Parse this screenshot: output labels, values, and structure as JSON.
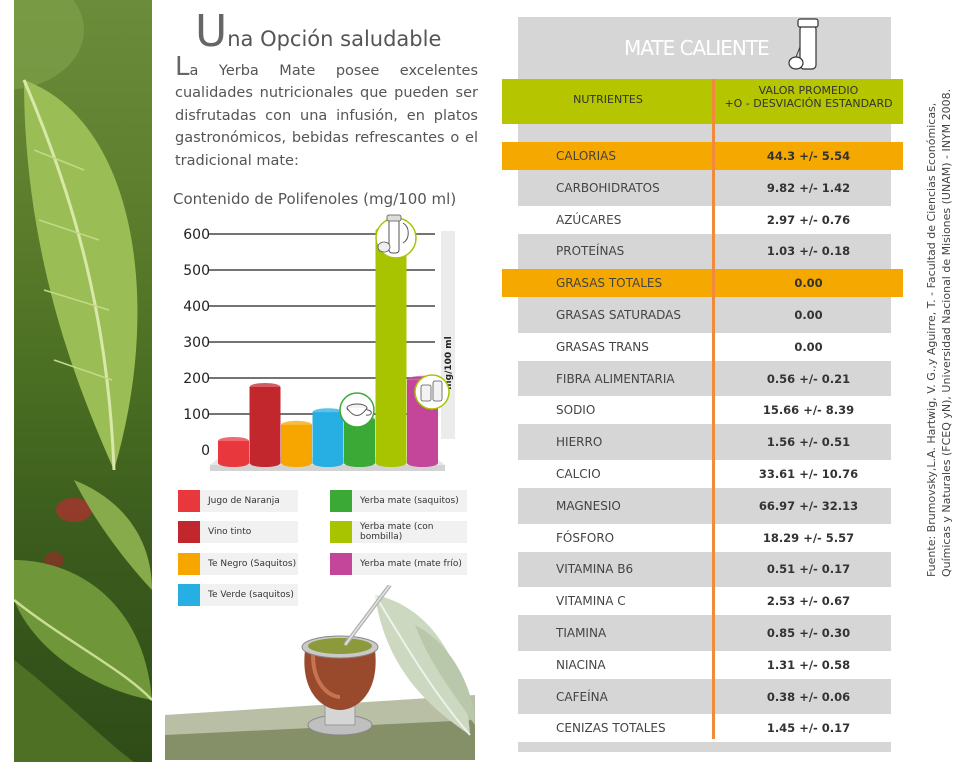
{
  "page": {
    "title_initial": "U",
    "title_rest": "na Opción saludable",
    "intro_initial": "L",
    "intro_rest": "a Yerba Mate posee excelentes cualidades nutricionales que pueden ser disfrutadas con una infusión, en platos gastronómicos, bebidas refrescantes o el tradicional mate:"
  },
  "chart_data": {
    "type": "bar",
    "title": "Contenido de Polifenoles (mg/100 ml)",
    "ylabel": "mg/100 ml",
    "xlabel": "",
    "ylim": [
      0,
      600
    ],
    "yticks": [
      0,
      100,
      200,
      300,
      400,
      500,
      600
    ],
    "categories": [
      "Jugo de Naranja",
      "Vino tinto",
      "Te Negro (Saquitos)",
      "Te Verde (saquitos)",
      "Yerba mate (saquitos)",
      "Yerba mate (con bombilla)",
      "Yerba mate (mate frío)"
    ],
    "values": [
      25,
      175,
      70,
      105,
      85,
      610,
      195
    ],
    "colors": [
      "#e8383d",
      "#c1272d",
      "#f7a600",
      "#27aee3",
      "#3aa935",
      "#a8c300",
      "#c4469a"
    ],
    "legend": "bottom"
  },
  "table": {
    "title": "MATE CALIENTE",
    "col_nutrients": "NUTRIENTES",
    "col_value_1": "VALOR PROMEDIO",
    "col_value_2": "+O -  DESVIACIÓN ESTANDARD",
    "rows": [
      {
        "name": "CALORIAS",
        "value": "44.3 +/- 5.54"
      },
      {
        "name": "CARBOHIDRATOS",
        "value": "9.82 +/- 1.42"
      },
      {
        "name": "AZÚCARES",
        "value": "2.97 +/- 0.76"
      },
      {
        "name": "PROTEÍNAS",
        "value": "1.03 +/- 0.18"
      },
      {
        "name": "GRASAS TOTALES",
        "value": "0.00"
      },
      {
        "name": "GRASAS SATURADAS",
        "value": "0.00"
      },
      {
        "name": "GRASAS TRANS",
        "value": "0.00"
      },
      {
        "name": "FIBRA ALIMENTARIA",
        "value": "0.56 +/- 0.21"
      },
      {
        "name": "SODIO",
        "value": "15.66 +/- 8.39"
      },
      {
        "name": "HIERRO",
        "value": "1.56 +/- 0.51"
      },
      {
        "name": "CALCIO",
        "value": "33.61 +/- 10.76"
      },
      {
        "name": "MAGNESIO",
        "value": "66.97 +/- 32.13"
      },
      {
        "name": "FÓSFORO",
        "value": "18.29 +/- 5.57"
      },
      {
        "name": "VITAMINA B6",
        "value": "0.51 +/- 0.17"
      },
      {
        "name": "VITAMINA C",
        "value": "2.53 +/- 0.67"
      },
      {
        "name": "TIAMINA",
        "value": "0.85 +/- 0.30"
      },
      {
        "name": "NIACINA",
        "value": "1.31 +/- 0.58"
      },
      {
        "name": "CAFEÍNA",
        "value": "0.38 +/- 0.06"
      },
      {
        "name": "CENIZAS TOTALES",
        "value": "1.45 +/- 0.17"
      }
    ]
  },
  "source": {
    "line1": "Fuente: Brumovsky,L.A. Hartwig, V. G.,y Aguirre, T. - Facultad de Ciencias Económicas,",
    "line2": "Químicas y Naturales (FCEQ yN), Universidad Nacional de Misiones (UNAM) - INYM 2008."
  },
  "icons": [
    "thermos-mate-icon",
    "leaf-photo",
    "mate-gourd-illustration"
  ]
}
